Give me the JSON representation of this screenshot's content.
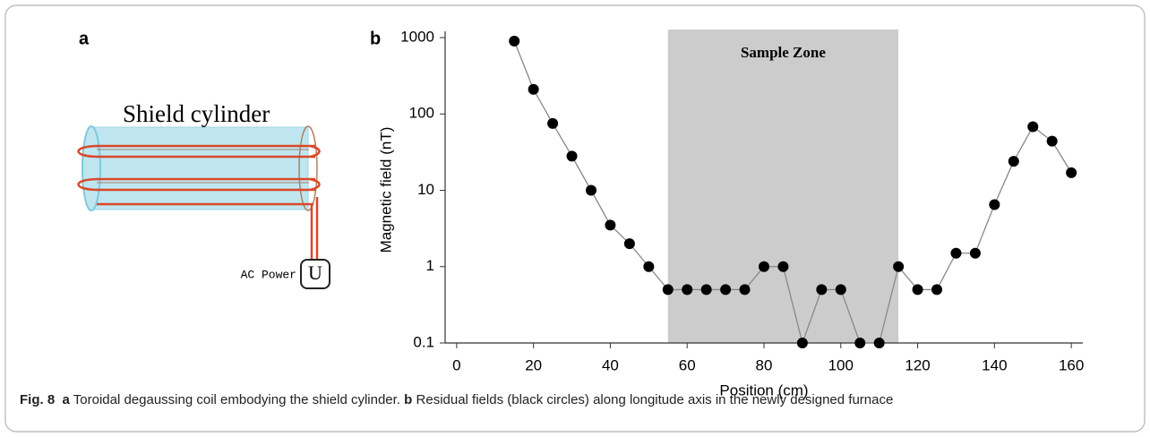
{
  "panel_a": {
    "label": "a",
    "cylinder_label": "Shield cylinder",
    "power_label": "AC Power",
    "source_symbol": "U"
  },
  "chart_data": {
    "type": "line",
    "panel_label": "b",
    "x_label": "Position (cm)",
    "y_label": "Magnetic field (nT)",
    "x": [
      15,
      20,
      25,
      30,
      35,
      40,
      45,
      50,
      55,
      60,
      65,
      70,
      75,
      80,
      85,
      90,
      95,
      100,
      105,
      110,
      115,
      120,
      125,
      130,
      135,
      140,
      145,
      150,
      155,
      160
    ],
    "series": [
      {
        "color": "#000000",
        "values": [
          900,
          210,
          75,
          28,
          10,
          3.5,
          2,
          1,
          0.5,
          0.5,
          0.5,
          0.5,
          0.5,
          1,
          1,
          0.1,
          0.5,
          0.5,
          0.1,
          0.1,
          1,
          0.5,
          0.5,
          1.5,
          1.5,
          6.5,
          24,
          68,
          44,
          17
        ]
      }
    ],
    "xlim": [
      -3,
      163
    ],
    "xticks": [
      0,
      20,
      40,
      60,
      80,
      100,
      120,
      140,
      160
    ],
    "ylim": [
      0.1,
      1000
    ],
    "yticks": [
      0.1,
      1,
      10,
      100,
      1000
    ],
    "y_log": true,
    "shaded_region": {
      "x": [
        55,
        115
      ],
      "label": "Sample Zone",
      "color": "#cccccc"
    }
  },
  "caption": {
    "figure": "Fig. 8",
    "part_a": "a",
    "text_a": "Toroidal degaussing coil embodying the shield cylinder.",
    "part_b": "b",
    "text_b": "Residual fields (black circles) along longitude axis in the newly designed furnace"
  }
}
